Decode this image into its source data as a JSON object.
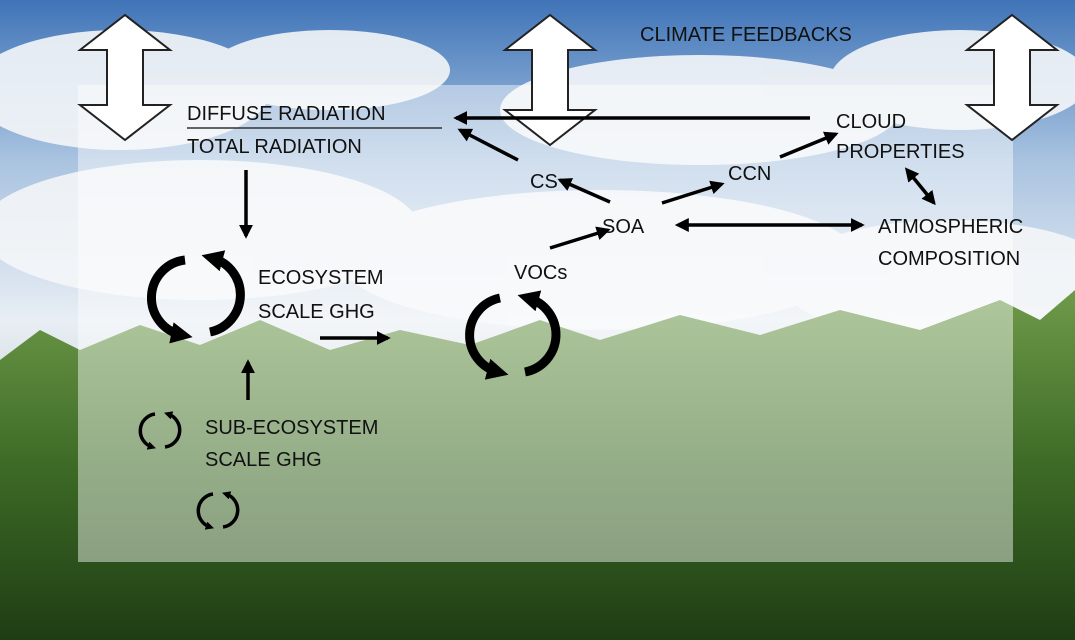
{
  "title": "CLIMATE FEEDBACKS",
  "radiation": {
    "numerator": "DIFFUSE RADIATION",
    "denominator": "TOTAL RADIATION"
  },
  "nodes": {
    "cloud": [
      "CLOUD",
      "PROPERTIES"
    ],
    "cs": "CS",
    "ccn": "CCN",
    "soa": "SOA",
    "atmospheric": [
      "ATMOSPHERIC",
      "COMPOSITION"
    ],
    "vocs": "VOCs",
    "ecosystem": [
      "ECOSYSTEM",
      "SCALE GHG"
    ],
    "sub_ecosystem": [
      "SUB-ECOSYSTEM",
      "SCALE GHG"
    ]
  }
}
